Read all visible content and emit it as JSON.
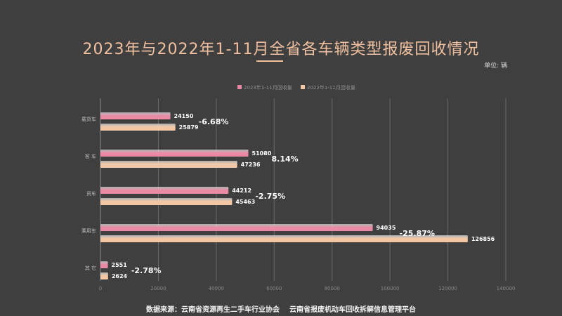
{
  "chart_data": {
    "type": "bar",
    "orientation": "horizontal",
    "title": "2023年与2022年1-11月全省各车辆类型报废回收情况",
    "unit_label": "单位: 辆",
    "categories": [
      "载货车",
      "客 车",
      "货车",
      "乘用车",
      "其 它"
    ],
    "series": [
      {
        "name": "2023年1-11月回收量",
        "values": [
          24150,
          51080,
          44212,
          94035,
          2551
        ],
        "color": "#e98aa5"
      },
      {
        "name": "2022年1-11月回收量",
        "values": [
          25879,
          47236,
          45463,
          126856,
          2624
        ],
        "color": "#f2c7a6"
      }
    ],
    "changes": [
      "-6.68%",
      "8.14%",
      "-2.75%",
      "-25.87%",
      "-2.78%"
    ],
    "xlim": [
      0,
      140000
    ],
    "xticks": [
      0,
      20000,
      40000,
      60000,
      80000,
      100000,
      120000,
      140000
    ],
    "grid": true,
    "legend_position": "top"
  },
  "footer": {
    "source_1": "数据来源：云南省资源再生二手车行业协会",
    "source_2": "云南省报废机动车回收拆解信息管理平台"
  }
}
